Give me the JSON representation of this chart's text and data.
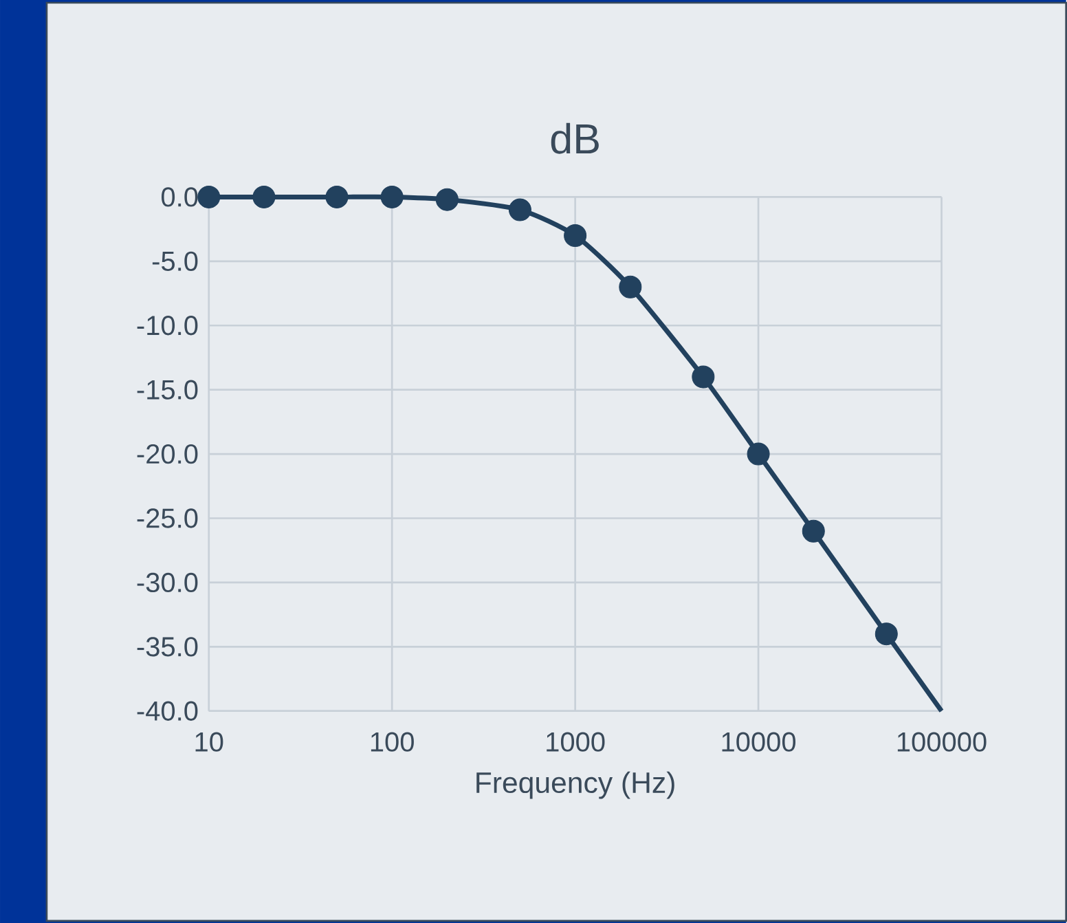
{
  "chart_data": {
    "type": "line",
    "title": "dB",
    "xlabel": "Frequency (Hz)",
    "log": "x",
    "grid": true,
    "xlim": [
      10,
      100000
    ],
    "xticks": [
      10,
      100,
      1000,
      10000,
      100000
    ],
    "ylim": [
      -40,
      0
    ],
    "yticks": [
      {
        "value": 0,
        "label": "0.0"
      },
      {
        "value": -5,
        "label": "-5.0"
      },
      {
        "value": -10,
        "label": "-10.0"
      },
      {
        "value": -15,
        "label": "-15.0"
      },
      {
        "value": -20,
        "label": "-20.0"
      },
      {
        "value": -25,
        "label": "-25.0"
      },
      {
        "value": -30,
        "label": "-30.0"
      },
      {
        "value": -35,
        "label": "-35.0"
      },
      {
        "value": -40,
        "label": "-40.0"
      }
    ],
    "series": [
      {
        "marker": "none",
        "color": "#22415e",
        "x": [
          10,
          20,
          50,
          100,
          200,
          500,
          1000,
          2000,
          5000,
          10000,
          20000,
          50000,
          100000
        ],
        "values": [
          0,
          0,
          0,
          0,
          -0.2,
          -1,
          -3,
          -7,
          -14,
          -20,
          -26,
          -34,
          -40
        ]
      },
      {
        "type": "scatter",
        "marker": "circle",
        "color": "#22415e",
        "x": [
          10,
          20,
          50,
          100,
          200,
          500,
          1000,
          2000,
          5000,
          10000,
          20000,
          50000
        ],
        "values": [
          0,
          0,
          0,
          0,
          -0.2,
          -1,
          -3,
          -7,
          -14,
          -20,
          -26,
          -34
        ]
      }
    ]
  }
}
